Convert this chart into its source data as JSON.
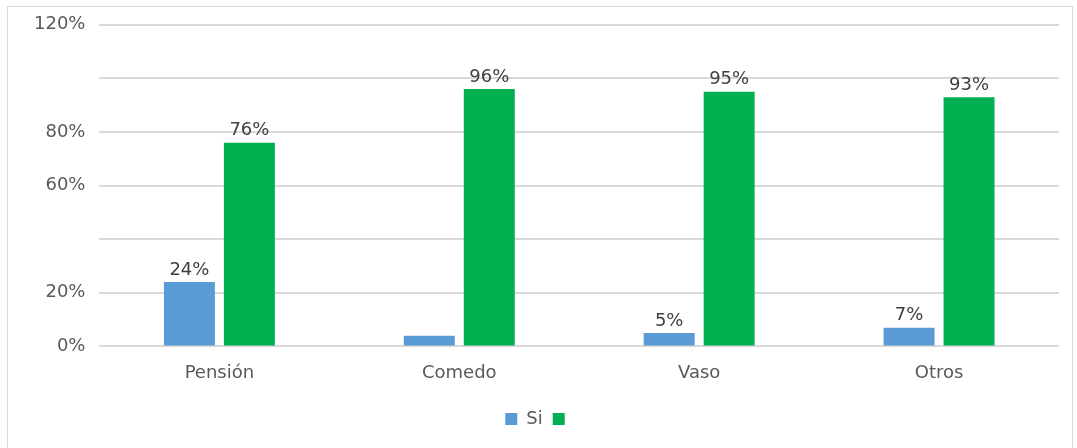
{
  "chart_data": {
    "type": "bar",
    "categories": [
      "Pensión",
      "Comedo",
      "Vaso",
      "Otros"
    ],
    "series": [
      {
        "name": "Si",
        "color": "#5b9bd5",
        "values": [
          24,
          4,
          5,
          7
        ],
        "value_labels": [
          "24%",
          null,
          "5%",
          "7%"
        ]
      },
      {
        "color": "#00b050",
        "values": [
          76,
          96,
          95,
          93
        ],
        "value_labels": [
          "76%",
          "96%",
          "95%",
          "93%"
        ]
      }
    ],
    "ylim": [
      0,
      120
    ],
    "yticks": [
      {
        "value": 0,
        "label": "0%"
      },
      {
        "value": 20,
        "label": "20%"
      },
      {
        "value": 40,
        "label": null
      },
      {
        "value": 60,
        "label": "60%"
      },
      {
        "value": 80,
        "label": "80%"
      },
      {
        "value": 100,
        "label": null
      },
      {
        "value": 120,
        "label": "120%"
      }
    ],
    "grid": "y",
    "legend": "bottom"
  }
}
